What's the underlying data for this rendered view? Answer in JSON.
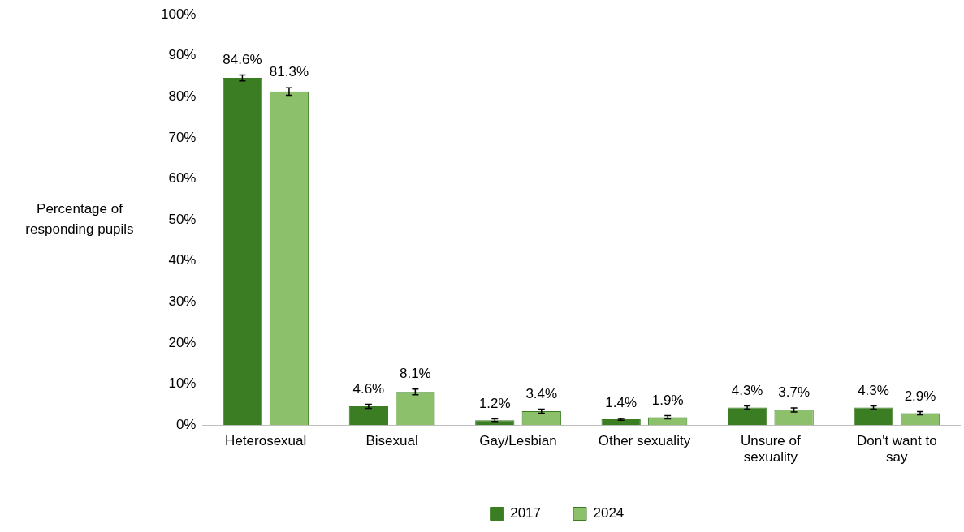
{
  "chart_data": {
    "type": "bar",
    "ylabel": "Percentage of responding pupils",
    "categories": [
      "Heterosexual",
      "Bisexual",
      "Gay/Lesbian",
      "Other sexuality",
      "Unsure of sexuality",
      "Don't want to say"
    ],
    "series": [
      {
        "name": "2017",
        "color": "#3a7d22",
        "values": [
          84.6,
          4.6,
          1.2,
          1.4,
          4.3,
          4.3
        ],
        "errors": [
          0.7,
          0.5,
          0.3,
          0.2,
          0.4,
          0.4
        ],
        "value_labels": [
          "84.6%",
          "4.6%",
          "1.2%",
          "1.4%",
          "4.3%",
          "4.3%"
        ]
      },
      {
        "name": "2024",
        "color": "#8cc06b",
        "values": [
          81.3,
          8.1,
          3.4,
          1.9,
          3.7,
          2.9
        ],
        "errors": [
          0.9,
          0.7,
          0.5,
          0.4,
          0.5,
          0.4
        ],
        "value_labels": [
          "81.3%",
          "8.1%",
          "3.4%",
          "1.9%",
          "3.7%",
          "2.9%"
        ]
      }
    ],
    "ylim": [
      0,
      100
    ],
    "yticks": [
      {
        "value": 0,
        "label": "0%"
      },
      {
        "value": 10,
        "label": "10%"
      },
      {
        "value": 20,
        "label": "20%"
      },
      {
        "value": 30,
        "label": "30%"
      },
      {
        "value": 40,
        "label": "40%"
      },
      {
        "value": 50,
        "label": "50%"
      },
      {
        "value": 60,
        "label": "60%"
      },
      {
        "value": 70,
        "label": "70%"
      },
      {
        "value": 80,
        "label": "80%"
      },
      {
        "value": 90,
        "label": "90%"
      },
      {
        "value": 100,
        "label": "100%"
      }
    ],
    "grid": false,
    "legend": "bottom"
  }
}
